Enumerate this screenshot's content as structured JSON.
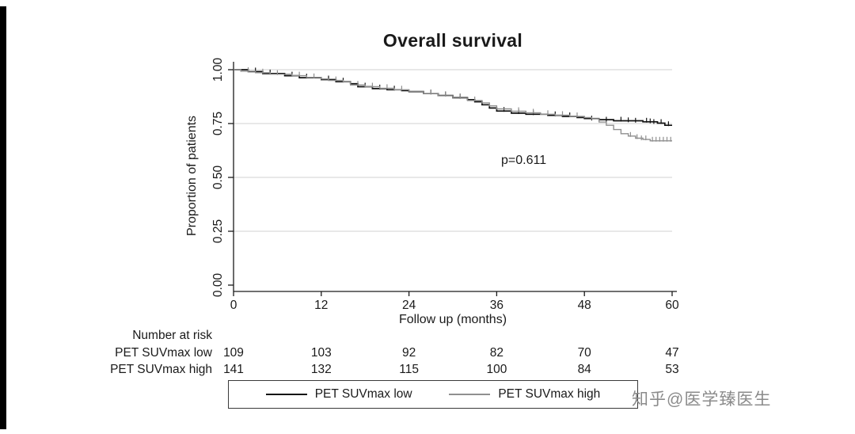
{
  "chart_data": {
    "type": "line",
    "subtype": "kaplan-meier-step",
    "title": "Overall survival",
    "xlabel": "Follow up (months)",
    "ylabel": "Proportion of patients",
    "xlim": [
      0,
      60
    ],
    "ylim": [
      0.0,
      1.0
    ],
    "xticks": [
      0,
      12,
      24,
      36,
      48,
      60
    ],
    "yticks": [
      "0.00",
      "0.25",
      "0.50",
      "0.75",
      "1.00"
    ],
    "ytick_values": [
      0,
      0.25,
      0.5,
      0.75,
      1.0
    ],
    "grid": "horizontal",
    "gridline_color": "#d2d2d2",
    "annotation": {
      "text": "p=0.611",
      "x": 39.7,
      "y": 0.577
    },
    "series": [
      {
        "name": "PET SUVmax low",
        "color": "#111111",
        "steps": [
          [
            0,
            1.0
          ],
          [
            2,
            0.991
          ],
          [
            4,
            0.982
          ],
          [
            7,
            0.972
          ],
          [
            9,
            0.963
          ],
          [
            12,
            0.954
          ],
          [
            14,
            0.944
          ],
          [
            16,
            0.935
          ],
          [
            17,
            0.921
          ],
          [
            19,
            0.912
          ],
          [
            21,
            0.907
          ],
          [
            23,
            0.903
          ],
          [
            24,
            0.898
          ],
          [
            26,
            0.889
          ],
          [
            28,
            0.88
          ],
          [
            30,
            0.87
          ],
          [
            32,
            0.861
          ],
          [
            33,
            0.851
          ],
          [
            34,
            0.837
          ],
          [
            35,
            0.822
          ],
          [
            36,
            0.808
          ],
          [
            38,
            0.798
          ],
          [
            40,
            0.793
          ],
          [
            43,
            0.788
          ],
          [
            45,
            0.783
          ],
          [
            47,
            0.778
          ],
          [
            48,
            0.773
          ],
          [
            50,
            0.768
          ],
          [
            52,
            0.763
          ],
          [
            56,
            0.758
          ],
          [
            58,
            0.752
          ],
          [
            59,
            0.742
          ],
          [
            60,
            0.742
          ]
        ],
        "censors": [
          [
            3,
            0.991
          ],
          [
            5,
            0.982
          ],
          [
            8,
            0.972
          ],
          [
            10,
            0.963
          ],
          [
            13,
            0.954
          ],
          [
            15,
            0.944
          ],
          [
            18,
            0.921
          ],
          [
            20,
            0.912
          ],
          [
            22,
            0.907
          ],
          [
            27,
            0.889
          ],
          [
            29,
            0.88
          ],
          [
            31,
            0.87
          ],
          [
            37,
            0.808
          ],
          [
            39,
            0.798
          ],
          [
            41,
            0.793
          ],
          [
            44,
            0.788
          ],
          [
            46,
            0.783
          ],
          [
            49,
            0.768
          ],
          [
            51,
            0.763
          ],
          [
            53,
            0.763
          ],
          [
            54,
            0.76
          ],
          [
            55,
            0.758
          ],
          [
            56.5,
            0.758
          ],
          [
            57,
            0.755
          ],
          [
            57.5,
            0.752
          ],
          [
            58.5,
            0.752
          ],
          [
            59.5,
            0.742
          ]
        ]
      },
      {
        "name": "PET SUVmax high",
        "color": "#8f8f8f",
        "steps": [
          [
            0,
            1.0
          ],
          [
            1,
            0.993
          ],
          [
            3,
            0.986
          ],
          [
            5,
            0.979
          ],
          [
            8,
            0.972
          ],
          [
            10,
            0.964
          ],
          [
            12,
            0.957
          ],
          [
            13,
            0.95
          ],
          [
            15,
            0.943
          ],
          [
            16,
            0.929
          ],
          [
            18,
            0.921
          ],
          [
            20,
            0.914
          ],
          [
            22,
            0.907
          ],
          [
            24,
            0.9
          ],
          [
            26,
            0.889
          ],
          [
            28,
            0.879
          ],
          [
            30,
            0.868
          ],
          [
            32,
            0.857
          ],
          [
            34,
            0.846
          ],
          [
            35,
            0.832
          ],
          [
            36,
            0.818
          ],
          [
            38,
            0.807
          ],
          [
            40,
            0.8
          ],
          [
            42,
            0.793
          ],
          [
            44,
            0.789
          ],
          [
            46,
            0.783
          ],
          [
            48,
            0.778
          ],
          [
            49,
            0.772
          ],
          [
            50,
            0.757
          ],
          [
            51,
            0.742
          ],
          [
            52,
            0.722
          ],
          [
            53,
            0.703
          ],
          [
            54,
            0.692
          ],
          [
            55,
            0.682
          ],
          [
            56,
            0.676
          ],
          [
            57,
            0.67
          ],
          [
            60,
            0.67
          ]
        ],
        "censors": [
          [
            2,
            0.993
          ],
          [
            4,
            0.986
          ],
          [
            6,
            0.979
          ],
          [
            9,
            0.972
          ],
          [
            11,
            0.964
          ],
          [
            14,
            0.95
          ],
          [
            17,
            0.929
          ],
          [
            19,
            0.921
          ],
          [
            21,
            0.914
          ],
          [
            23,
            0.907
          ],
          [
            27,
            0.889
          ],
          [
            29,
            0.879
          ],
          [
            31,
            0.868
          ],
          [
            33,
            0.857
          ],
          [
            39,
            0.807
          ],
          [
            41,
            0.8
          ],
          [
            43,
            0.793
          ],
          [
            45,
            0.789
          ],
          [
            47,
            0.783
          ],
          [
            54.3,
            0.692
          ],
          [
            55.2,
            0.682
          ],
          [
            55.8,
            0.676
          ],
          [
            56.4,
            0.676
          ],
          [
            57.3,
            0.67
          ],
          [
            57.8,
            0.67
          ],
          [
            58.3,
            0.67
          ],
          [
            58.8,
            0.67
          ],
          [
            59.3,
            0.67
          ],
          [
            59.8,
            0.67
          ]
        ]
      }
    ],
    "risk_table": {
      "title": "Number at risk",
      "times": [
        0,
        12,
        24,
        36,
        48,
        60
      ],
      "rows": [
        {
          "label": "PET SUVmax low",
          "values": [
            109,
            103,
            92,
            82,
            70,
            47
          ]
        },
        {
          "label": "PET SUVmax high",
          "values": [
            141,
            132,
            115,
            100,
            84,
            53
          ]
        }
      ]
    },
    "legend": {
      "position": "bottom",
      "entries": [
        "PET SUVmax low",
        "PET SUVmax high"
      ]
    }
  },
  "watermark": {
    "text": "知乎@医学臻医生",
    "color": "#8b8b8b"
  }
}
